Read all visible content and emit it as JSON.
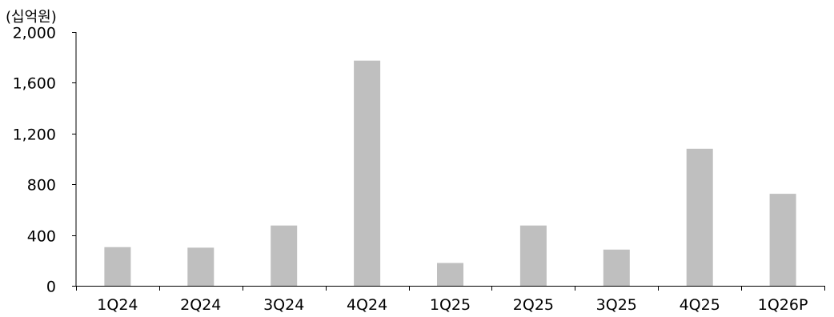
{
  "chart_data": {
    "type": "bar",
    "unit_label": "(십억원)",
    "categories": [
      "1Q24",
      "2Q24",
      "3Q24",
      "4Q24",
      "1Q25",
      "2Q25",
      "3Q25",
      "4Q25",
      "1Q26P"
    ],
    "values": [
      305,
      300,
      475,
      1775,
      180,
      475,
      285,
      1080,
      725
    ],
    "ylim": [
      0,
      2000
    ],
    "yticks": [
      0,
      400,
      800,
      1200,
      1600,
      2000
    ],
    "ytick_labels": [
      "0",
      "400",
      "800",
      "1,200",
      "1,600",
      "2,000"
    ],
    "bar_color": "#bfbfbf",
    "grid": false,
    "legend": "none"
  }
}
